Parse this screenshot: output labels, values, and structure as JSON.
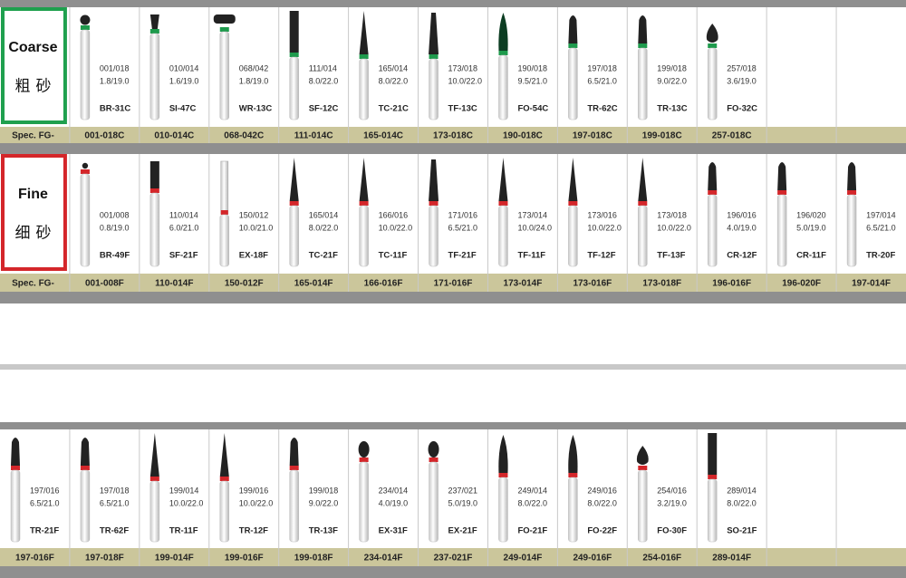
{
  "sections": [
    {
      "label": "Coarse",
      "label_cn": "粗砂",
      "spec_label": "Spec. FG-",
      "items": [
        {
          "size": "001/018",
          "dims": "1.8/19.0",
          "code": "BR-31C",
          "ref": "001-018C"
        },
        {
          "size": "010/014",
          "dims": "1.6/19.0",
          "code": "SI-47C",
          "ref": "010-014C"
        },
        {
          "size": "068/042",
          "dims": "1.8/19.0",
          "code": "WR-13C",
          "ref": "068-042C"
        },
        {
          "size": "111/014",
          "dims": "8.0/22.0",
          "code": "SF-12C",
          "ref": "111-014C"
        },
        {
          "size": "165/014",
          "dims": "8.0/22.0",
          "code": "TC-21C",
          "ref": "165-014C"
        },
        {
          "size": "173/018",
          "dims": "10.0/22.0",
          "code": "TF-13C",
          "ref": "173-018C"
        },
        {
          "size": "190/018",
          "dims": "9.5/21.0",
          "code": "FO-54C",
          "ref": "190-018C"
        },
        {
          "size": "197/018",
          "dims": "6.5/21.0",
          "code": "TR-62C",
          "ref": "197-018C"
        },
        {
          "size": "199/018",
          "dims": "9.0/22.0",
          "code": "TR-13C",
          "ref": "199-018C"
        },
        {
          "size": "257/018",
          "dims": "3.6/19.0",
          "code": "FO-32C",
          "ref": "257-018C"
        }
      ]
    },
    {
      "label": "Fine",
      "label_cn": "细砂",
      "spec_label": "Spec. FG-",
      "items": [
        {
          "size": "001/008",
          "dims": "0.8/19.0",
          "code": "BR-49F",
          "ref": "001-008F"
        },
        {
          "size": "110/014",
          "dims": "6.0/21.0",
          "code": "SF-21F",
          "ref": "110-014F"
        },
        {
          "size": "150/012",
          "dims": "10.0/21.0",
          "code": "EX-18F",
          "ref": "150-012F"
        },
        {
          "size": "165/014",
          "dims": "8.0/22.0",
          "code": "TC-21F",
          "ref": "165-014F"
        },
        {
          "size": "166/016",
          "dims": "10.0/22.0",
          "code": "TC-11F",
          "ref": "166-016F"
        },
        {
          "size": "171/016",
          "dims": "6.5/21.0",
          "code": "TF-21F",
          "ref": "171-016F"
        },
        {
          "size": "173/014",
          "dims": "10.0/24.0",
          "code": "TF-11F",
          "ref": "173-014F"
        },
        {
          "size": "173/016",
          "dims": "10.0/22.0",
          "code": "TF-12F",
          "ref": "173-016F"
        },
        {
          "size": "173/018",
          "dims": "10.0/22.0",
          "code": "TF-13F",
          "ref": "173-018F"
        },
        {
          "size": "196/016",
          "dims": "4.0/19.0",
          "code": "CR-12F",
          "ref": "196-016F"
        },
        {
          "size": "196/020",
          "dims": "5.0/19.0",
          "code": "CR-11F",
          "ref": "196-020F"
        },
        {
          "size": "197/014",
          "dims": "6.5/21.0",
          "code": "TR-20F",
          "ref": "197-014F"
        }
      ]
    },
    {
      "items": [
        {
          "size": "197/016",
          "dims": "6.5/21.0",
          "code": "TR-21F",
          "ref": "197-016F"
        },
        {
          "size": "197/018",
          "dims": "6.5/21.0",
          "code": "TR-62F",
          "ref": "197-018F"
        },
        {
          "size": "199/014",
          "dims": "10.0/22.0",
          "code": "TR-11F",
          "ref": "199-014F"
        },
        {
          "size": "199/016",
          "dims": "10.0/22.0",
          "code": "TR-12F",
          "ref": "199-016F"
        },
        {
          "size": "199/018",
          "dims": "9.0/22.0",
          "code": "TR-13F",
          "ref": "199-018F"
        },
        {
          "size": "234/014",
          "dims": "4.0/19.0",
          "code": "EX-31F",
          "ref": "234-014F"
        },
        {
          "size": "237/021",
          "dims": "5.0/19.0",
          "code": "EX-21F",
          "ref": "237-021F"
        },
        {
          "size": "249/014",
          "dims": "8.0/22.0",
          "code": "FO-21F",
          "ref": "249-014F"
        },
        {
          "size": "249/016",
          "dims": "8.0/22.0",
          "code": "FO-22F",
          "ref": "249-016F"
        },
        {
          "size": "254/016",
          "dims": "3.2/19.0",
          "code": "FO-30F",
          "ref": "254-016F"
        },
        {
          "size": "289/014",
          "dims": "8.0/22.0",
          "code": "SO-21F",
          "ref": "289-014F"
        }
      ]
    }
  ]
}
